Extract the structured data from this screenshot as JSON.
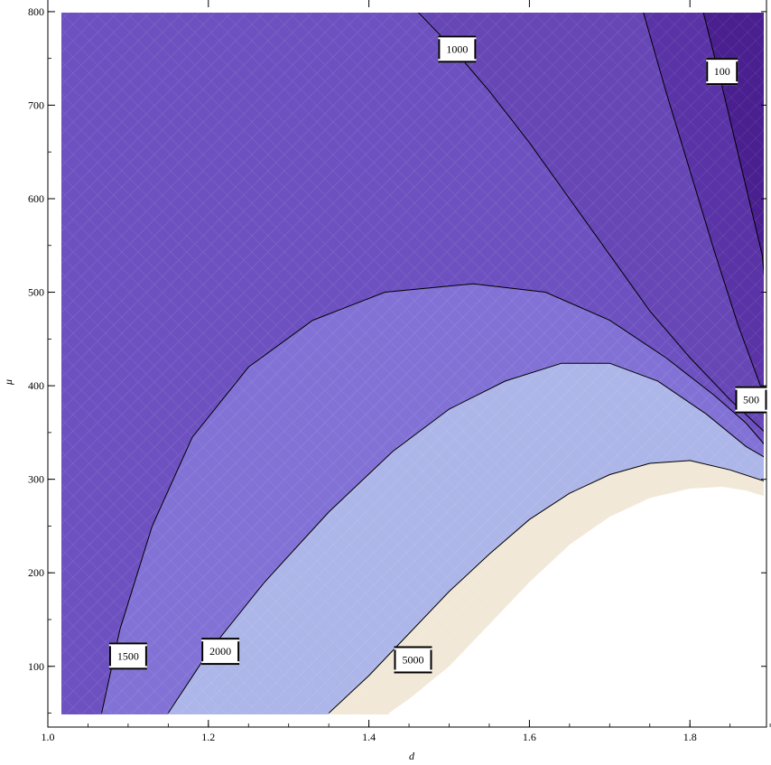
{
  "chart_data": {
    "type": "contour",
    "title": "",
    "xlabel": "d",
    "ylabel": "μ",
    "xlim": [
      1.0,
      1.9
    ],
    "ylim": [
      40,
      805
    ],
    "x_ticks": [
      1.0,
      1.2,
      1.4,
      1.6,
      1.8
    ],
    "x_tick_labels": [
      "1.0",
      "1.2",
      "1.4",
      "1.6",
      "1.8"
    ],
    "y_ticks": [
      100,
      200,
      300,
      400,
      500,
      600,
      700,
      800
    ],
    "y_tick_labels": [
      "100",
      "200",
      "300",
      "400",
      "500",
      "600",
      "700",
      "800"
    ],
    "grid": false,
    "region_colors": {
      "below_100": "#4a1f8f",
      "100_500": "#5a33a6",
      "500_1000": "#6747b6",
      "1000_1500": "#6e51c0",
      "1500_2000": "#8272d6",
      "2000_5000": "#adb6e8",
      "5000_plus": "#f2e8d8",
      "no_data": "#ffffff"
    },
    "contours": [
      {
        "level": 100,
        "label": "100",
        "label_at": [
          1.84,
          736
        ],
        "points": [
          [
            1.815,
            805
          ],
          [
            1.84,
            720
          ],
          [
            1.865,
            630
          ],
          [
            1.89,
            540
          ],
          [
            1.9,
            452
          ]
        ]
      },
      {
        "level": 500,
        "label": "500",
        "label_at": [
          1.905,
          385
        ],
        "points": [
          [
            1.74,
            805
          ],
          [
            1.77,
            715
          ],
          [
            1.8,
            630
          ],
          [
            1.83,
            545
          ],
          [
            1.86,
            465
          ],
          [
            1.89,
            395
          ],
          [
            1.9,
            370
          ]
        ]
      },
      {
        "level": 1000,
        "label": "1000",
        "label_at": [
          1.51,
          760
        ],
        "points": [
          [
            1.455,
            805
          ],
          [
            1.5,
            765
          ],
          [
            1.55,
            715
          ],
          [
            1.6,
            660
          ],
          [
            1.65,
            600
          ],
          [
            1.7,
            540
          ],
          [
            1.75,
            480
          ],
          [
            1.8,
            430
          ],
          [
            1.85,
            385
          ],
          [
            1.9,
            345
          ]
        ]
      },
      {
        "level": 1500,
        "label": "1500",
        "label_at": [
          1.1,
          111
        ],
        "points": [
          [
            1.067,
            50
          ],
          [
            1.09,
            140
          ],
          [
            1.13,
            250
          ],
          [
            1.18,
            345
          ],
          [
            1.25,
            420
          ],
          [
            1.33,
            470
          ],
          [
            1.42,
            500
          ],
          [
            1.53,
            509
          ],
          [
            1.62,
            500
          ],
          [
            1.7,
            470
          ],
          [
            1.77,
            430
          ],
          [
            1.83,
            390
          ],
          [
            1.87,
            360
          ],
          [
            1.9,
            330
          ]
        ]
      },
      {
        "level": 2000,
        "label": "2000",
        "label_at": [
          1.215,
          116
        ],
        "points": [
          [
            1.15,
            50
          ],
          [
            1.2,
            115
          ],
          [
            1.27,
            190
          ],
          [
            1.35,
            265
          ],
          [
            1.43,
            330
          ],
          [
            1.5,
            375
          ],
          [
            1.57,
            405
          ],
          [
            1.64,
            424
          ],
          [
            1.7,
            424
          ],
          [
            1.76,
            405
          ],
          [
            1.82,
            370
          ],
          [
            1.87,
            335
          ],
          [
            1.9,
            320
          ]
        ]
      },
      {
        "level": 5000,
        "label": "5000",
        "label_at": [
          1.455,
          107
        ],
        "points": [
          [
            1.35,
            50
          ],
          [
            1.4,
            90
          ],
          [
            1.45,
            135
          ],
          [
            1.5,
            180
          ],
          [
            1.55,
            220
          ],
          [
            1.6,
            257
          ],
          [
            1.65,
            285
          ],
          [
            1.7,
            305
          ],
          [
            1.75,
            317
          ],
          [
            1.8,
            320
          ],
          [
            1.85,
            310
          ],
          [
            1.9,
            296
          ]
        ]
      }
    ],
    "no_data_boundary": [
      [
        1.425,
        50
      ],
      [
        1.45,
        65
      ],
      [
        1.5,
        100
      ],
      [
        1.55,
        145
      ],
      [
        1.6,
        190
      ],
      [
        1.65,
        230
      ],
      [
        1.7,
        260
      ],
      [
        1.75,
        280
      ],
      [
        1.8,
        290
      ],
      [
        1.84,
        292
      ],
      [
        1.87,
        288
      ],
      [
        1.9,
        280
      ]
    ]
  }
}
